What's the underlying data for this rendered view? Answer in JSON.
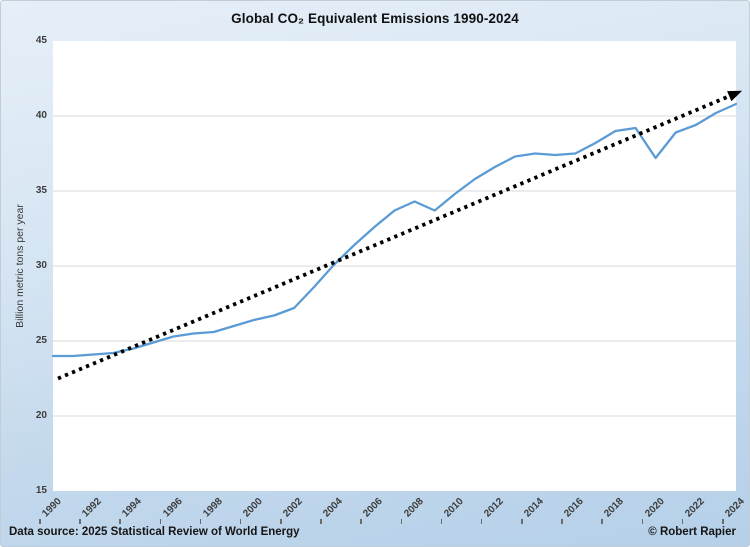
{
  "title": "Global CO₂ Equivalent Emissions 1990-2024",
  "footer": {
    "source": "Data source: 2025 Statistical Review of World Energy",
    "credit": "© Robert Rapier"
  },
  "colors": {
    "emissions_line": "#5b9bd5",
    "trend_line": "#000000",
    "gridline": "#d9d9d9",
    "plot_background": "#ffffff",
    "page_background_top": "#e6eff8",
    "page_background_bottom": "#b5d0e9"
  },
  "chart_data": {
    "type": "line",
    "title": "Global CO₂ Equivalent Emissions 1990-2024",
    "xlabel": "",
    "ylabel": "Billion metric tons per year",
    "xlim": [
      1990,
      2024
    ],
    "ylim": [
      15,
      45
    ],
    "grid": true,
    "legend_position": "none",
    "yticklabels": [
      "15",
      "20",
      "25",
      "30",
      "35",
      "40",
      "45"
    ],
    "xticklabels": [
      "1990",
      "1992",
      "1994",
      "1996",
      "1998",
      "2000",
      "2002",
      "2004",
      "2006",
      "2008",
      "2010",
      "2012",
      "2014",
      "2016",
      "2018",
      "2020",
      "2022",
      "2024"
    ],
    "series": [
      {
        "name": "Global CO2 equivalent emissions",
        "style": "solid",
        "color": "#5b9bd5",
        "x": [
          1990,
          1991,
          1992,
          1993,
          1994,
          1995,
          1996,
          1997,
          1998,
          1999,
          2000,
          2001,
          2002,
          2003,
          2004,
          2005,
          2006,
          2007,
          2008,
          2009,
          2010,
          2011,
          2012,
          2013,
          2014,
          2015,
          2016,
          2017,
          2018,
          2019,
          2020,
          2021,
          2022,
          2023,
          2024
        ],
        "values": [
          24.0,
          24.0,
          24.1,
          24.2,
          24.5,
          24.9,
          25.3,
          25.5,
          25.6,
          26.0,
          26.4,
          26.7,
          27.2,
          28.6,
          30.1,
          31.4,
          32.6,
          33.7,
          34.3,
          33.7,
          34.8,
          35.8,
          36.6,
          37.3,
          37.5,
          37.4,
          37.5,
          38.2,
          39.0,
          39.2,
          37.2,
          38.9,
          39.4,
          40.2,
          40.8
        ]
      },
      {
        "name": "Linear trend",
        "style": "dotted",
        "arrow_end": true,
        "color": "#000000",
        "x": [
          1990.25,
          2023.8
        ],
        "values": [
          22.5,
          41.4
        ]
      }
    ]
  }
}
